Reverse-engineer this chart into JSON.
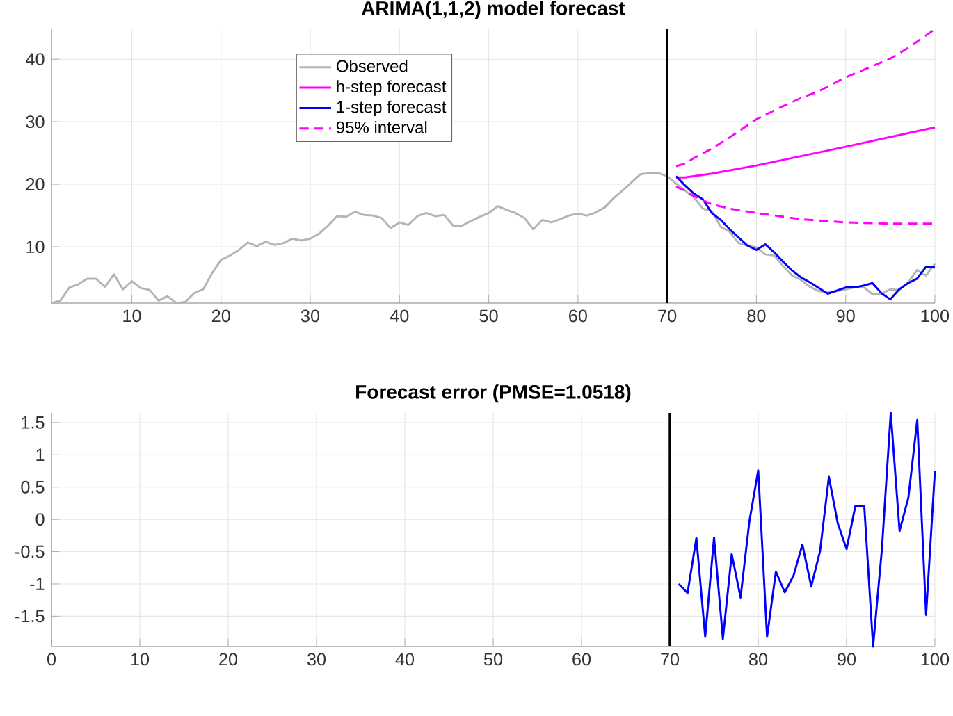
{
  "chart_data": [
    {
      "type": "line",
      "title": "ARIMA(1,1,2) model forecast",
      "xlim": [
        1,
        100
      ],
      "xticks": [
        10,
        20,
        30,
        40,
        50,
        60,
        70,
        80,
        90,
        100
      ],
      "ylim": [
        1,
        44.8
      ],
      "yticks": [
        10,
        20,
        30,
        40
      ],
      "grid": true,
      "legend": "top",
      "ref_lines": [
        {
          "axis": "x",
          "value": 70,
          "color": "#000000"
        }
      ],
      "series": [
        {
          "name": "Observed",
          "color": "#b4b4b4",
          "x": [
            1,
            2,
            3,
            4,
            5,
            6,
            7,
            8,
            9,
            10,
            11,
            12,
            13,
            14,
            15,
            16,
            17,
            18,
            19,
            20,
            21,
            22,
            23,
            24,
            25,
            26,
            27,
            28,
            29,
            30,
            31,
            32,
            33,
            34,
            35,
            36,
            37,
            38,
            39,
            40,
            41,
            42,
            43,
            44,
            45,
            46,
            47,
            48,
            49,
            50,
            51,
            52,
            53,
            54,
            55,
            56,
            57,
            58,
            59,
            60,
            61,
            62,
            63,
            64,
            65,
            66,
            67,
            68,
            69,
            70,
            71,
            72,
            73,
            74,
            75,
            76,
            77,
            78,
            79,
            80,
            81,
            82,
            83,
            84,
            85,
            86,
            87,
            88,
            89,
            90,
            91,
            92,
            93,
            94,
            95,
            96,
            97,
            98,
            99,
            100
          ],
          "values": [
            1.0,
            1.4,
            3.5,
            4.0,
            4.9,
            4.9,
            3.6,
            5.6,
            3.2,
            4.5,
            3.4,
            3.1,
            1.4,
            2.1,
            1.0,
            1.2,
            2.6,
            3.2,
            5.8,
            7.9,
            8.6,
            9.5,
            10.7,
            10.1,
            10.8,
            10.3,
            10.6,
            11.3,
            11.0,
            11.3,
            12.1,
            13.4,
            14.9,
            14.8,
            15.6,
            15.1,
            15.0,
            14.6,
            13.0,
            13.9,
            13.5,
            14.9,
            15.4,
            14.9,
            15.1,
            13.4,
            13.4,
            14.1,
            14.8,
            15.4,
            16.5,
            15.9,
            15.4,
            14.6,
            12.8,
            14.3,
            13.9,
            14.4,
            15.0,
            15.3,
            15.0,
            15.5,
            16.3,
            17.8,
            19.0,
            20.3,
            21.6,
            21.8,
            21.8,
            21.3,
            20.1,
            19.0,
            17.9,
            16.1,
            15.7,
            13.2,
            12.4,
            10.6,
            10.2,
            9.9,
            8.8,
            8.6,
            6.9,
            5.4,
            4.7,
            3.6,
            2.9,
            2.7,
            2.9,
            3.2,
            3.5,
            3.6,
            2.4,
            2.5,
            3.2,
            3.1,
            4.3,
            6.3,
            5.4,
            7.3
          ]
        },
        {
          "name": "h-step forecast",
          "color": "#ff00ff",
          "x": [
            71,
            72,
            73,
            75,
            80,
            90,
            100
          ],
          "values": [
            21.1,
            21.1,
            21.3,
            21.7,
            23.0,
            26.0,
            29.1
          ]
        },
        {
          "name": "1-step forecast",
          "color": "#0000ff",
          "x": [
            71,
            72,
            73,
            74,
            75,
            76,
            77,
            78,
            79,
            80,
            81,
            82,
            83,
            84,
            85,
            86,
            87,
            88,
            89,
            90,
            91,
            92,
            93,
            94,
            95,
            96,
            97,
            98,
            99,
            100
          ],
          "values": [
            21.3,
            19.8,
            18.5,
            17.6,
            15.4,
            14.3,
            12.8,
            11.5,
            10.2,
            9.5,
            10.4,
            9.1,
            7.6,
            6.2,
            5.1,
            4.3,
            3.4,
            2.5,
            3.0,
            3.5,
            3.5,
            3.8,
            4.2,
            2.6,
            1.6,
            3.2,
            4.2,
            4.9,
            6.8,
            6.7
          ]
        },
        {
          "name": "95% interval",
          "color": "#ff00ff",
          "line_style": "dashed",
          "x": [
            71,
            72,
            73,
            75,
            77,
            80,
            83,
            85,
            87,
            90,
            93,
            95,
            97,
            100
          ],
          "values": [
            22.9,
            23.3,
            24.2,
            25.7,
            27.5,
            30.4,
            32.5,
            33.8,
            34.9,
            37.1,
            38.9,
            40.1,
            41.8,
            44.8
          ]
        },
        {
          "color": "#ff00ff",
          "line_style": "dashed",
          "x": [
            71,
            72,
            73,
            75,
            77,
            80,
            85,
            90,
            95,
            100
          ],
          "values": [
            19.6,
            19.0,
            18.1,
            16.8,
            16.1,
            15.4,
            14.4,
            13.9,
            13.7,
            13.7
          ]
        }
      ]
    },
    {
      "type": "line",
      "title": "Forecast error (PMSE=1.0518)",
      "xlim": [
        0,
        100
      ],
      "xticks": [
        0,
        10,
        20,
        30,
        40,
        50,
        60,
        70,
        80,
        90,
        100
      ],
      "ylim": [
        -1.97,
        1.65
      ],
      "yticks": [
        -1.5,
        -1,
        -0.5,
        0,
        0.5,
        1,
        1.5
      ],
      "grid": true,
      "ref_lines": [
        {
          "axis": "x",
          "value": 70,
          "color": "#000000"
        }
      ],
      "series": [
        {
          "color": "#0000ff",
          "x": [
            71,
            72,
            73,
            74,
            75,
            76,
            77,
            78,
            79,
            80,
            81,
            82,
            83,
            84,
            85,
            86,
            87,
            88,
            89,
            90,
            91,
            92,
            93,
            94,
            95,
            96,
            97,
            98,
            99,
            100
          ],
          "values": [
            -1.0,
            -1.14,
            -0.29,
            -1.82,
            -0.28,
            -1.85,
            -0.54,
            -1.21,
            -0.03,
            0.76,
            -1.82,
            -0.81,
            -1.13,
            -0.87,
            -0.39,
            -1.04,
            -0.49,
            0.66,
            -0.06,
            -0.46,
            0.21,
            0.21,
            -1.97,
            -0.46,
            1.65,
            -0.18,
            0.34,
            1.54,
            -1.48,
            0.75
          ]
        }
      ]
    }
  ]
}
